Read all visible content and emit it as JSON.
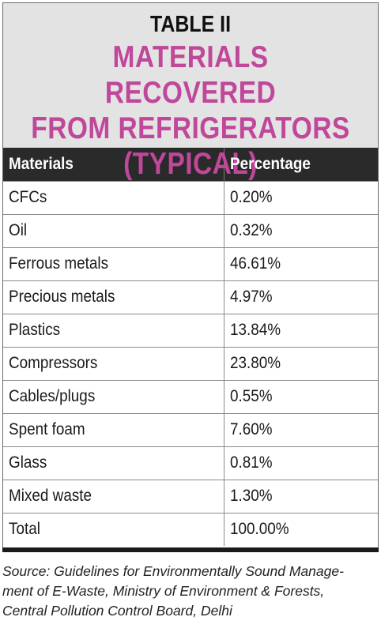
{
  "table": {
    "label": "TABLE II",
    "title_lines": [
      "MATERIALS RECOVERED",
      "FROM REFRIGERATORS",
      "(TYPICAL)"
    ],
    "title_color": "#c0479a",
    "header_bg": "#2a2a2a",
    "title_bg": "#e3e3e4",
    "columns": [
      "Materials",
      "Percentage"
    ],
    "rows": [
      {
        "material": "CFCs",
        "percentage": "0.20%"
      },
      {
        "material": "Oil",
        "percentage": "0.32%"
      },
      {
        "material": "Ferrous metals",
        "percentage": "46.61%"
      },
      {
        "material": "Precious metals",
        "percentage": "4.97%"
      },
      {
        "material": "Plastics",
        "percentage": "13.84%"
      },
      {
        "material": "Compressors",
        "percentage": "23.80%"
      },
      {
        "material": "Cables/plugs",
        "percentage": "0.55%"
      },
      {
        "material": "Spent foam",
        "percentage": "7.60%"
      },
      {
        "material": "Glass",
        "percentage": "0.81%"
      },
      {
        "material": "Mixed waste",
        "percentage": "1.30%"
      },
      {
        "material": "Total",
        "percentage": "100.00%"
      }
    ]
  },
  "source_lines": [
    "Source: Guidelines for Environmentally Sound Manage-",
    "ment of E-Waste, Ministry of Environment & Forests,",
    "Central Pollution Control Board, Delhi"
  ]
}
